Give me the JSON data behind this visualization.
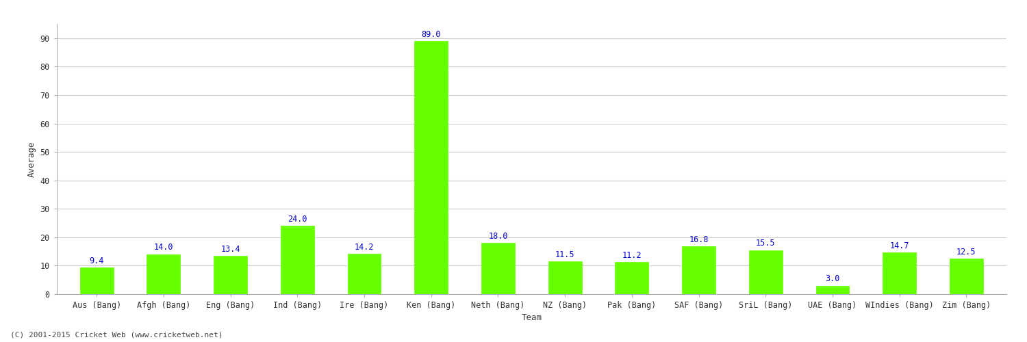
{
  "xlabel": "Team",
  "ylabel": "Average",
  "categories": [
    "Aus (Bang)",
    "Afgh (Bang)",
    "Eng (Bang)",
    "Ind (Bang)",
    "Ire (Bang)",
    "Ken (Bang)",
    "Neth (Bang)",
    "NZ (Bang)",
    "Pak (Bang)",
    "SAF (Bang)",
    "SriL (Bang)",
    "UAE (Bang)",
    "WIndies (Bang)",
    "Zim (Bang)"
  ],
  "values": [
    9.4,
    14.0,
    13.4,
    24.0,
    14.2,
    89.0,
    18.0,
    11.5,
    11.2,
    16.8,
    15.5,
    3.0,
    14.7,
    12.5
  ],
  "bar_color": "#66ff00",
  "bar_edge_color": "#66ff00",
  "label_color": "#0000cc",
  "label_fontsize": 8.5,
  "ylabel_fontsize": 9,
  "xlabel_fontsize": 9,
  "tick_fontsize": 8.5,
  "ylim": [
    0,
    95
  ],
  "yticks": [
    0,
    10,
    20,
    30,
    40,
    50,
    60,
    70,
    80,
    90
  ],
  "grid_color": "#d0d0d0",
  "background_color": "#ffffff",
  "plot_bg_color": "#f8f8f8",
  "footer_text": "(C) 2001-2015 Cricket Web (www.cricketweb.net)",
  "footer_fontsize": 8,
  "footer_color": "#444444",
  "bar_width": 0.5
}
